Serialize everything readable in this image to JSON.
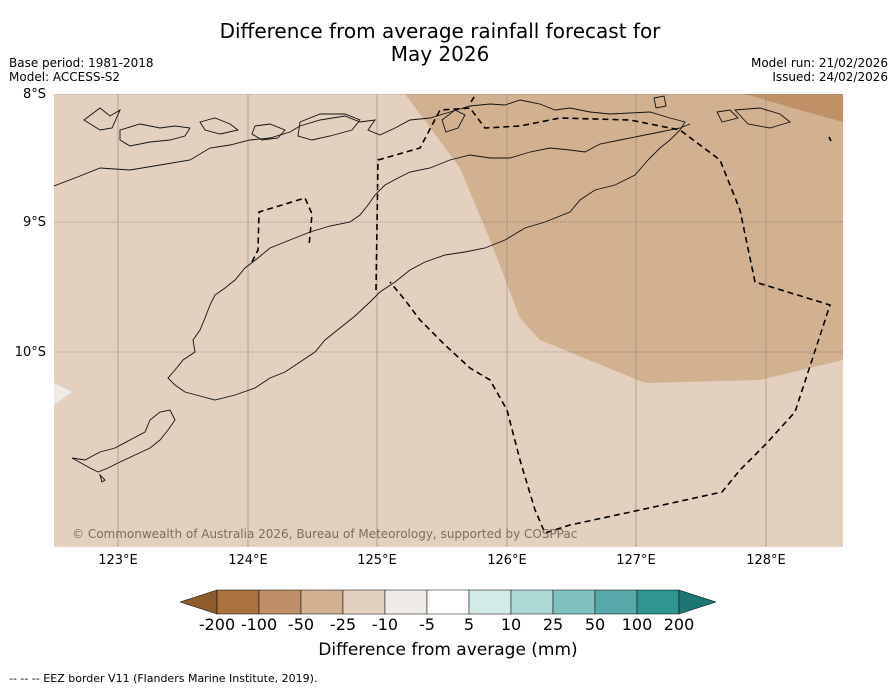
{
  "header": {
    "title_line1": "Difference from average rainfall forecast for",
    "title_line2": "May 2026",
    "base_period": "Base period: 1981-2018",
    "model": "Model: ACCESS-S2",
    "model_run": "Model run: 21/02/2026",
    "issued": "Issued: 24/02/2026"
  },
  "map": {
    "lat_labels": [
      "8°S",
      "9°S",
      "10°S"
    ],
    "lon_labels": [
      "123°E",
      "124°E",
      "125°E",
      "126°E",
      "127°E",
      "128°E"
    ],
    "copyright": "© Commonwealth of Australia 2026, Bureau of Meteorology, supported by COSPPac",
    "colors": {
      "ocean_default": "#e3d0bf",
      "drier_band": "#d2b191",
      "driest_band": "#c09167",
      "near_average": "#eeeae6",
      "coastline": "#111111",
      "eez": "#000000"
    }
  },
  "legend": {
    "title": "Difference from average (mm)",
    "ticks": [
      "-200",
      "-100",
      "-50",
      "-25",
      "-10",
      "-5",
      "5",
      "10",
      "25",
      "50",
      "100",
      "200"
    ],
    "colors": [
      "#8e5b2c",
      "#a9723e",
      "#be8e66",
      "#d2b191",
      "#e3d0bf",
      "#eeeae6",
      "#ffffff",
      "#d2ebe7",
      "#acd8d5",
      "#7fc1be",
      "#56a9a8",
      "#2e9590",
      "#1d7573"
    ]
  },
  "footer": {
    "eez_note": "--  --  -- EEZ border V11 (Flanders Marine Institute, 2019)."
  }
}
